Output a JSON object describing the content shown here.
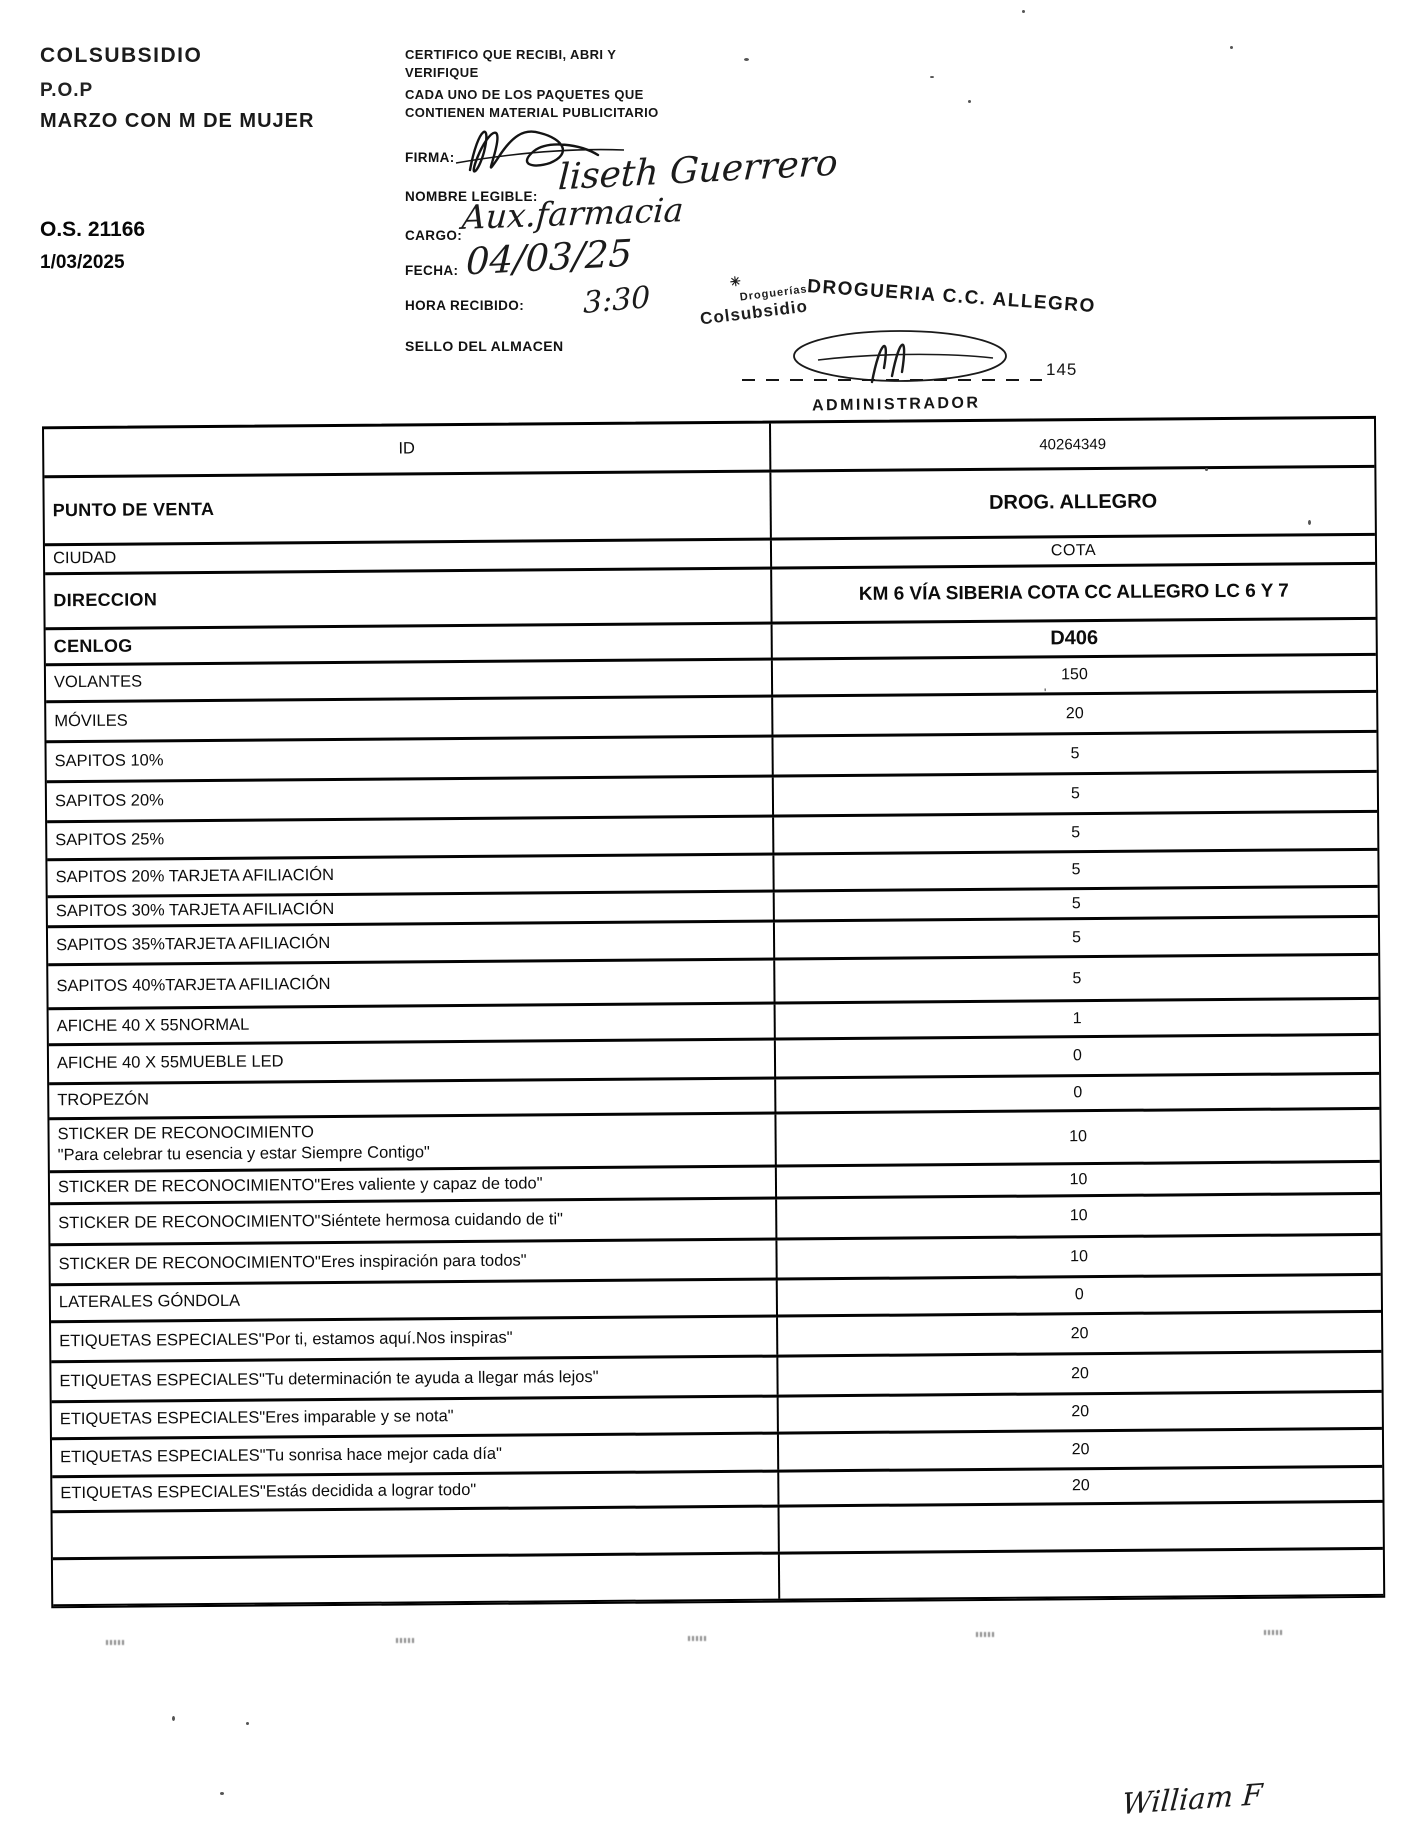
{
  "document": {
    "brand": "COLSUBSIDIO",
    "program": "P.O.P",
    "campaign": "MARZO CON M DE MUJER",
    "order_number": "O.S. 21166",
    "order_date": "1/03/2025"
  },
  "certification": {
    "line1": "CERTIFICO QUE RECIBI, ABRI Y",
    "line2": "VERIFIQUE",
    "line3": "CADA UNO DE LOS PAQUETES QUE",
    "line4": "CONTIENEN MATERIAL PUBLICITARIO",
    "firma_label": "FIRMA:",
    "nombre_label": "NOMBRE LEGIBLE:",
    "nombre_value": "liseth Guerrero",
    "cargo_label": "CARGO:",
    "cargo_value": "Aux.farmacia",
    "fecha_label": "FECHA:",
    "fecha_value": "04/03/25",
    "hora_label": "HORA RECIBIDO:",
    "hora_value": "3:30",
    "sello_label": "SELLO DEL ALMACEN"
  },
  "stamp": {
    "logo_mark": "✳",
    "logo_line1": "Droguerías",
    "logo_line2": "Colsubsidio",
    "store_name": "DROGUERIA C.C. ALLEGRO",
    "number": "145",
    "role": "ADMINISTRADOR"
  },
  "table": {
    "rows": [
      {
        "label": "ID",
        "value": "40264349"
      },
      {
        "label": "PUNTO DE VENTA",
        "value": "DROG. ALLEGRO"
      },
      {
        "label": "CIUDAD",
        "value": "COTA"
      },
      {
        "label": "DIRECCION",
        "value": "KM 6 VÍA SIBERIA COTA CC ALLEGRO LC 6 Y 7"
      },
      {
        "label": "CENLOG",
        "value": "D406"
      },
      {
        "label": "VOLANTES",
        "value": "150"
      },
      {
        "label": "MÓVILES",
        "value": "20"
      },
      {
        "label": "SAPITOS 10%",
        "value": "5"
      },
      {
        "label": "SAPITOS 20%",
        "value": "5"
      },
      {
        "label": "SAPITOS 25%",
        "value": "5"
      },
      {
        "label": "SAPITOS 20% TARJETA AFILIACIÓN",
        "value": "5"
      },
      {
        "label": "SAPITOS 30% TARJETA AFILIACIÓN",
        "value": "5"
      },
      {
        "label": "SAPITOS 35%TARJETA AFILIACIÓN",
        "value": "5"
      },
      {
        "label": "SAPITOS 40%TARJETA AFILIACIÓN",
        "value": "5"
      },
      {
        "label": "AFICHE 40 X 55NORMAL",
        "value": "1"
      },
      {
        "label": "AFICHE 40 X 55MUEBLE LED",
        "value": "0"
      },
      {
        "label": "TROPEZÓN",
        "value": "0"
      },
      {
        "label": "STICKER DE RECONOCIMIENTO\n\"Para celebrar tu esencia y estar Siempre Contigo\"",
        "value": "10"
      },
      {
        "label": "STICKER DE RECONOCIMIENTO\"Eres valiente y capaz de todo\"",
        "value": "10"
      },
      {
        "label": "STICKER DE RECONOCIMIENTO\"Siéntete hermosa cuidando de ti\"",
        "value": "10"
      },
      {
        "label": "STICKER DE RECONOCIMIENTO\"Eres inspiración para todos\"",
        "value": "10"
      },
      {
        "label": "LATERALES GÓNDOLA",
        "value": "0"
      },
      {
        "label": "ETIQUETAS ESPECIALES\"Por ti, estamos aquí.Nos inspiras\"",
        "value": "20"
      },
      {
        "label": "ETIQUETAS ESPECIALES\"Tu determinación te ayuda a llegar más lejos\"",
        "value": "20"
      },
      {
        "label": "ETIQUETAS ESPECIALES\"Eres imparable y se nota\"",
        "value": "20"
      },
      {
        "label": "ETIQUETAS ESPECIALES\"Tu sonrisa hace mejor cada día\"",
        "value": "20"
      },
      {
        "label": "ETIQUETAS ESPECIALES\"Estás decidida a lograr todo\"",
        "value": "20"
      },
      {
        "label": "",
        "value": ""
      },
      {
        "label": "",
        "value": ""
      }
    ]
  },
  "footer": {
    "handwritten_name": "William F"
  }
}
